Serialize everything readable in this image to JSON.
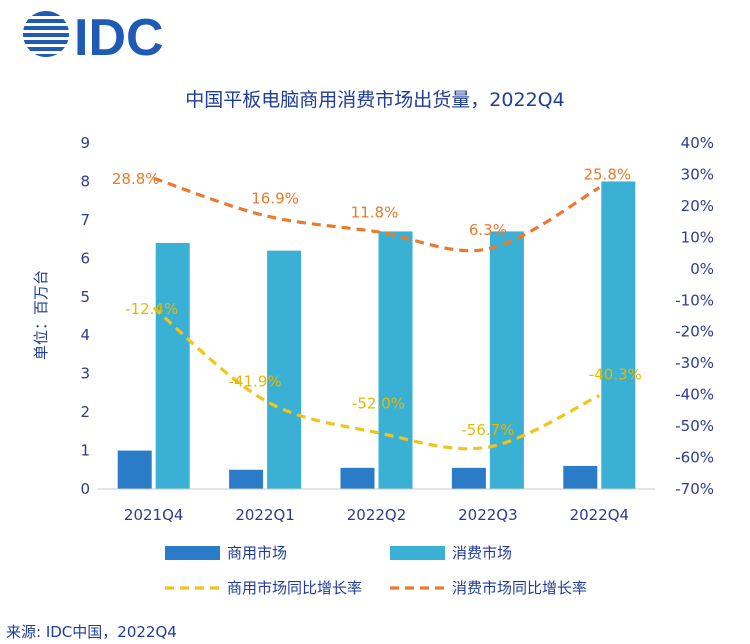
{
  "logo": {
    "text": "IDC",
    "color": "#1f5bb5"
  },
  "source": "来源: IDC中国，2022Q4",
  "chart_data": {
    "type": "bar",
    "title": "中国平板电脑商用消费市场出货量，2022Q4",
    "ylabel": "单位：百万台",
    "categories": [
      "2021Q4",
      "2022Q1",
      "2022Q2",
      "2022Q3",
      "2022Q4"
    ],
    "ylim": [
      0,
      9
    ],
    "yticks": [
      "0",
      "1",
      "2",
      "3",
      "4",
      "5",
      "6",
      "7",
      "8",
      "9"
    ],
    "y2lim": [
      -70,
      40
    ],
    "y2ticks": [
      "-70%",
      "-60%",
      "-50%",
      "-40%",
      "-30%",
      "-20%",
      "-10%",
      "0%",
      "10%",
      "20%",
      "30%",
      "40%"
    ],
    "grid": false,
    "legend_position": "bottom",
    "series": [
      {
        "name": "商用市场",
        "type": "bar",
        "axis": "left",
        "color": "#2a7bc8",
        "values": [
          1.0,
          0.5,
          0.55,
          0.55,
          0.6
        ]
      },
      {
        "name": "消费市场",
        "type": "bar",
        "axis": "left",
        "color": "#3ab0d4",
        "values": [
          6.4,
          6.2,
          6.7,
          6.7,
          8.0
        ]
      },
      {
        "name": "商用市场同比增长率",
        "type": "line",
        "style": "dashed",
        "axis": "right",
        "color": "#f0c419",
        "values": [
          -12.4,
          -41.9,
          -52.0,
          -56.7,
          -40.3
        ],
        "labels": [
          "-12.4%",
          "-41.9%",
          "-52.0%",
          "-56.7%",
          "-40.3%"
        ]
      },
      {
        "name": "消费市场同比增长率",
        "type": "line",
        "style": "dashed",
        "axis": "right",
        "color": "#ea7a2e",
        "values": [
          28.8,
          16.9,
          11.8,
          6.3,
          25.8
        ],
        "labels": [
          "28.8%",
          "16.9%",
          "11.8%",
          "6.3%",
          "25.8%"
        ]
      }
    ]
  }
}
